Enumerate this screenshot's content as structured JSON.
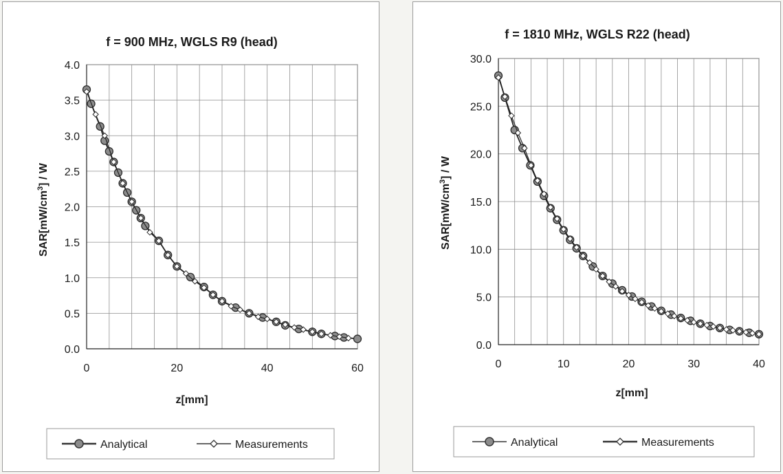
{
  "chart_data": [
    {
      "type": "line",
      "title": "f = 900 MHz, WGLS R9 (head)",
      "xlabel": "z[mm]",
      "ylabel_prefix": "SAR[mW/cm",
      "ylabel_sup": "3",
      "ylabel_suffix": "] / W",
      "xlim": [
        0,
        60
      ],
      "ylim": [
        0,
        4.0
      ],
      "xticks": [
        "0",
        "20",
        "40",
        "60"
      ],
      "yticks": [
        "0.0",
        "0.5",
        "1.0",
        "1.5",
        "2.0",
        "2.5",
        "3.0",
        "3.5",
        "4.0"
      ],
      "grid": true,
      "legend_position": "bottom",
      "series": [
        {
          "name": "Analytical",
          "marker": "filled-circle",
          "color": "#555555",
          "x": [
            0,
            1,
            3,
            4,
            5,
            6,
            7,
            8,
            9,
            10,
            11,
            12,
            13,
            16,
            18,
            20,
            23,
            26,
            28,
            30,
            33,
            36,
            39,
            42,
            44,
            47,
            50,
            52,
            55,
            57,
            60
          ],
          "y": [
            3.65,
            3.45,
            3.13,
            2.93,
            2.78,
            2.63,
            2.48,
            2.33,
            2.2,
            2.07,
            1.95,
            1.84,
            1.73,
            1.52,
            1.32,
            1.16,
            1.01,
            0.87,
            0.76,
            0.67,
            0.58,
            0.5,
            0.44,
            0.38,
            0.33,
            0.28,
            0.24,
            0.21,
            0.18,
            0.16,
            0.14
          ]
        },
        {
          "name": "Measurements",
          "marker": "diamond",
          "color": "#333333",
          "x": [
            0,
            2,
            4,
            6,
            8,
            10,
            12,
            14,
            16,
            18,
            20,
            22,
            24,
            26,
            28,
            30,
            32,
            34,
            36,
            38,
            40,
            42,
            44,
            46,
            48,
            50,
            52,
            54,
            56,
            58
          ],
          "y": [
            3.62,
            3.3,
            3.0,
            2.63,
            2.33,
            2.07,
            1.84,
            1.64,
            1.52,
            1.32,
            1.16,
            1.06,
            0.95,
            0.86,
            0.76,
            0.67,
            0.6,
            0.55,
            0.5,
            0.45,
            0.42,
            0.38,
            0.34,
            0.3,
            0.27,
            0.24,
            0.21,
            0.19,
            0.17,
            0.15
          ]
        }
      ]
    },
    {
      "type": "line",
      "title": "f = 1810 MHz, WGLS R22 (head)",
      "xlabel": "z[mm]",
      "ylabel_prefix": "SAR[mW/cm",
      "ylabel_sup": "3",
      "ylabel_suffix": "] / W",
      "xlim": [
        0,
        40
      ],
      "ylim": [
        0,
        30
      ],
      "xticks": [
        "0",
        "10",
        "20",
        "30",
        "40"
      ],
      "yticks": [
        "0.0",
        "5.0",
        "10.0",
        "15.0",
        "20.0",
        "25.0",
        "30.0"
      ],
      "grid": true,
      "legend_position": "bottom",
      "series": [
        {
          "name": "Analytical",
          "marker": "filled-circle",
          "color": "#555555",
          "x": [
            0,
            1,
            2.5,
            3.7,
            4.9,
            6,
            7,
            8,
            9,
            10,
            11,
            12,
            13,
            14.5,
            16,
            17.5,
            19,
            20.5,
            22,
            23.5,
            25,
            26.5,
            28,
            29.5,
            31,
            32.5,
            34,
            35.5,
            37,
            38.5,
            40
          ],
          "y": [
            28.2,
            25.9,
            22.5,
            20.6,
            18.8,
            17.1,
            15.6,
            14.3,
            13.1,
            12.0,
            11.0,
            10.1,
            9.3,
            8.2,
            7.2,
            6.4,
            5.7,
            5.05,
            4.5,
            4.0,
            3.55,
            3.15,
            2.8,
            2.5,
            2.2,
            1.95,
            1.75,
            1.55,
            1.4,
            1.25,
            1.1
          ]
        },
        {
          "name": "Measurements",
          "marker": "diamond",
          "color": "#333333",
          "x": [
            0,
            1,
            2,
            3,
            4,
            5,
            6,
            7,
            8,
            9,
            10,
            11,
            12,
            13,
            14,
            15,
            16,
            17,
            18,
            19,
            20,
            21,
            22,
            23,
            24,
            25,
            26,
            27,
            28,
            29,
            30,
            31,
            32,
            33,
            34,
            35,
            36,
            37,
            38,
            39,
            40
          ],
          "y": [
            28.0,
            26.0,
            24.0,
            22.2,
            20.6,
            18.8,
            17.2,
            15.8,
            14.4,
            13.2,
            12.1,
            11.1,
            10.2,
            9.3,
            8.6,
            7.9,
            7.2,
            6.6,
            6.1,
            5.6,
            5.2,
            4.8,
            4.45,
            4.1,
            3.8,
            3.5,
            3.25,
            3.0,
            2.75,
            2.55,
            2.35,
            2.2,
            2.05,
            1.9,
            1.75,
            1.6,
            1.5,
            1.4,
            1.3,
            1.2,
            1.1
          ]
        }
      ]
    }
  ]
}
